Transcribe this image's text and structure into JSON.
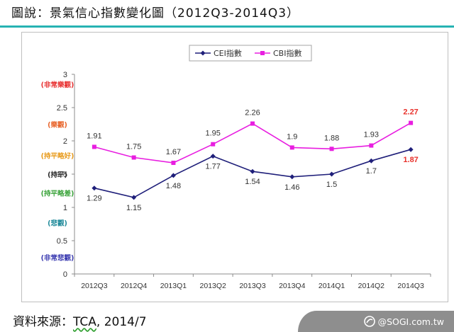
{
  "caption": "圖說：景氣信心指數變化圖（2012Q3-2014Q3）",
  "source": {
    "prefix": "資料來源：",
    "org": "TCA",
    "suffix": ", 2014/7"
  },
  "watermark": {
    "text": "@SOGI.com.tw",
    "icon": "sogi-logo-icon"
  },
  "colors": {
    "cei": "#1f1f7a",
    "cbi": "#e81ee0",
    "highlight": "#e8302a",
    "rule": "#27b3b3"
  },
  "chart_data": {
    "type": "line",
    "title": "",
    "categories": [
      "2012Q3",
      "2012Q4",
      "2013Q1",
      "2013Q2",
      "2013Q3",
      "2013Q4",
      "2014Q1",
      "2014Q2",
      "2014Q3"
    ],
    "ylim": [
      0,
      3
    ],
    "yticks": [
      "0",
      "0.5",
      "1",
      "1.5",
      "2",
      "2.5",
      "3"
    ],
    "grid": false,
    "legend": "top-center",
    "series": [
      {
        "name": "CEI指數",
        "marker": "diamond",
        "color": "#1f1f7a",
        "values": [
          1.29,
          1.15,
          1.48,
          1.77,
          1.54,
          1.46,
          1.5,
          1.7,
          1.87
        ],
        "labels": [
          "1.29",
          "1.15",
          "1.48",
          "1.77",
          "1.54",
          "1.46",
          "1.5",
          "1.7",
          "1.87"
        ]
      },
      {
        "name": "CBI指數",
        "marker": "square",
        "color": "#e81ee0",
        "values": [
          1.91,
          1.75,
          1.67,
          1.95,
          2.26,
          1.9,
          1.88,
          1.93,
          2.27
        ],
        "labels": [
          "1.91",
          "1.75",
          "1.67",
          "1.95",
          "2.26",
          "1.9",
          "1.88",
          "1.93",
          "2.27"
        ]
      }
    ],
    "zone_labels": [
      {
        "text": "(非常樂觀)",
        "y": 2.85,
        "color": "#e83030"
      },
      {
        "text": "(樂觀)",
        "y": 2.25,
        "color": "#e8642a"
      },
      {
        "text": "(持平略好)",
        "y": 1.78,
        "color": "#e89a1a"
      },
      {
        "text": "(持平)",
        "y": 1.5,
        "color": "#222222"
      },
      {
        "text": "(持平略差)",
        "y": 1.22,
        "color": "#3aa33a"
      },
      {
        "text": "(悲觀)",
        "y": 0.77,
        "color": "#1f8a9a"
      },
      {
        "text": "(非常悲觀)",
        "y": 0.25,
        "color": "#3a3ab0"
      }
    ]
  }
}
